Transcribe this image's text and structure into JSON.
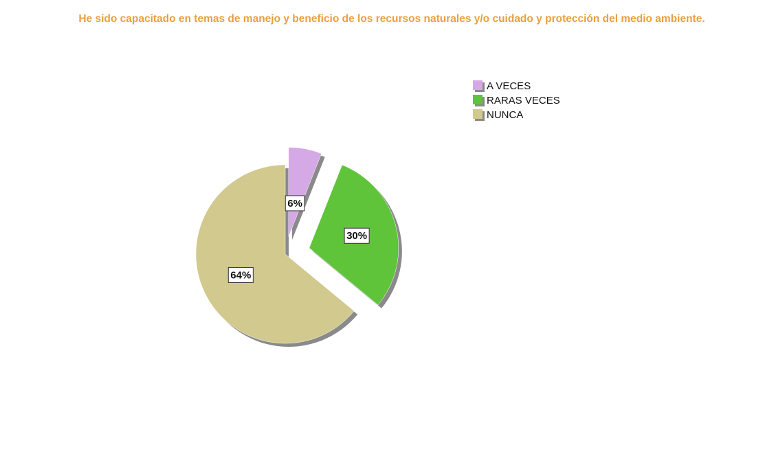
{
  "chart_data": {
    "type": "pie",
    "title": "He sido capacitado en temas de manejo y beneficio de los recursos naturales y/o cuidado y protección del medio ambiente.",
    "categories": [
      "A VECES",
      "RARAS VECES",
      "NUNCA"
    ],
    "values": [
      6,
      30,
      64
    ],
    "value_labels": [
      "6%",
      "30%",
      "64%"
    ],
    "colors": [
      "#d4a9e6",
      "#5fc43a",
      "#d1c98e"
    ],
    "legend": "top-right"
  }
}
